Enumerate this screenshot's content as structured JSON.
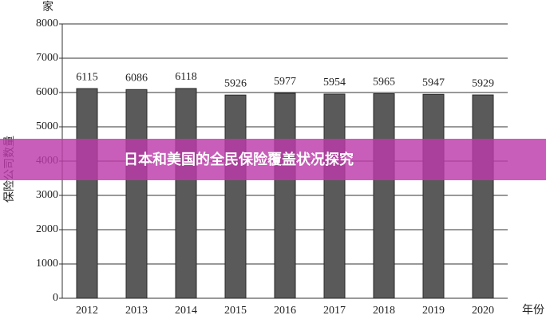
{
  "chart_data": {
    "type": "bar",
    "title": "日本和美国的全民保险覆盖状况探究",
    "y_unit": "家",
    "ylabel": "保险公司数量",
    "xlabel": "年份",
    "categories": [
      "2012",
      "2013",
      "2014",
      "2015",
      "2016",
      "2017",
      "2018",
      "2019",
      "2020"
    ],
    "values": [
      6115,
      6086,
      6118,
      5926,
      5977,
      5954,
      5965,
      5947,
      5929
    ],
    "color": "#5b5a5a",
    "ylim": [
      0,
      8000
    ],
    "yticks": [
      0,
      1000,
      2000,
      3000,
      4000,
      5000,
      6000,
      7000,
      8000
    ],
    "grid": true
  }
}
